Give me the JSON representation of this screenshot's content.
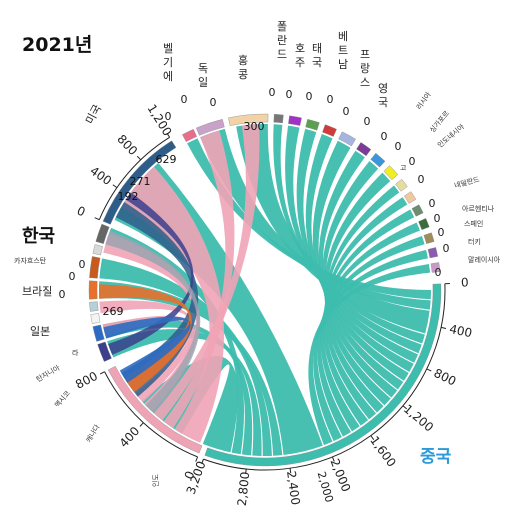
{
  "title": "2021년",
  "colors": {
    "china_flow": "#3dbdae",
    "india_flow": "#efa4b6",
    "usa": "#2f5d8a",
    "ticks": "#222222"
  },
  "chart_data": {
    "type": "chord",
    "title": "2021년",
    "groups": [
      {
        "name": "중국",
        "color": "#3dbdae",
        "ticks": [
          "0",
          "400",
          "800",
          "1,200",
          "1,600",
          "2,000",
          "2,400",
          "2,800",
          "3,200"
        ]
      },
      {
        "name": "인도",
        "color": "#efa4b6",
        "ticks": [
          "0",
          "400",
          "800"
        ]
      },
      {
        "name": "캐나다",
        "color": "#3b3f8c"
      },
      {
        "name": "멕시코",
        "color": "#2d6cc2"
      },
      {
        "name": "탄자니아",
        "color": "#f4f4f4"
      },
      {
        "name": "라",
        "color": "#b7cfd6"
      },
      {
        "name": "일본",
        "color": "#e8702a"
      },
      {
        "name": "브라질",
        "color": "#c85a1e"
      },
      {
        "name": "카자흐스탄",
        "color": "#d9d9d9"
      },
      {
        "name": "한국",
        "color": "#666666"
      },
      {
        "name": "미국",
        "color": "#2f5d8a",
        "ticks": [
          "0",
          "400",
          "800",
          "1,200"
        ]
      },
      {
        "name": "벨기에",
        "color": "#e86d8a"
      },
      {
        "name": "독일",
        "color": "#c8a2c8"
      },
      {
        "name": "홍콩",
        "color": "#f2d3a8"
      },
      {
        "name": "폴란드",
        "color": "#777777"
      },
      {
        "name": "호주",
        "color": "#a032c8"
      },
      {
        "name": "태국",
        "color": "#5aa050"
      },
      {
        "name": "베트남",
        "color": "#d03c3c"
      },
      {
        "name": "프랑스",
        "color": "#a6b4e0"
      },
      {
        "name": "영국",
        "color": "#7a3c96"
      },
      {
        "name": "러시아",
        "color": "#3c96dc"
      },
      {
        "name": "싱가포르",
        "color": "#eeee22"
      },
      {
        "name": "인도네시아",
        "color": "#e6dca0"
      },
      {
        "name": "고",
        "color": "#f0c8a0"
      },
      {
        "name": "네덜란드",
        "color": "#6e8c6e"
      },
      {
        "name": "아르헨티나",
        "color": "#3c6e3c"
      },
      {
        "name": "스페인",
        "color": "#a08c5a"
      },
      {
        "name": "터키",
        "color": "#8c5ab4"
      },
      {
        "name": "말레이시아",
        "color": "#c89ac8"
      }
    ],
    "value_labels": [
      "629",
      "271",
      "192",
      "269",
      "300"
    ],
    "axis_labels": {
      "china_2000": "2,000"
    }
  }
}
